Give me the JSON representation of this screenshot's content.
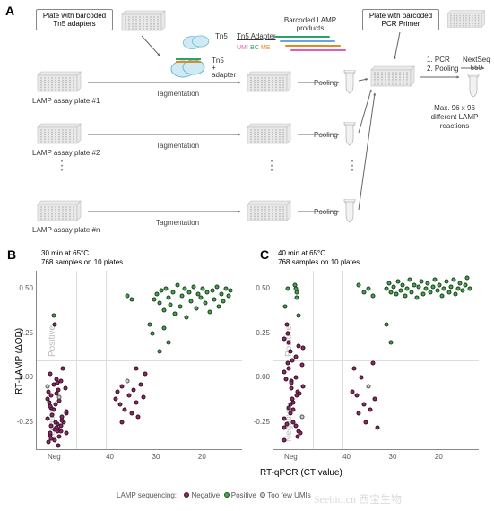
{
  "panelA": {
    "label": "A",
    "boxes": {
      "adapter_plate": "Plate with barcoded\nTn5 adapters",
      "pcr_plate": "Plate with barcoded\nPCR Primer"
    },
    "plate_labels": [
      "LAMP assay plate #1",
      "LAMP assay plate #2",
      "LAMP assay plate #n"
    ],
    "tn5_label": "Tn5",
    "tn5_adapter_label": "Tn5 Adapter",
    "umi_bc_me": [
      {
        "t": "UMI",
        "c": "#e85aad"
      },
      {
        "t": "BC",
        "c": "#2aa36a"
      },
      {
        "t": "ME",
        "c": "#e08a1f"
      }
    ],
    "tn5_plus_adapter": "Tn5\n+\nadapter",
    "barcoded_lamp": "Barcoded LAMP\nproducts",
    "lamp_bar_colors": [
      "#2aa36a",
      "#6aa4e0",
      "#e08a1f",
      "#e85aad"
    ],
    "tagmentation": "Tagmentation",
    "pooling": "Pooling",
    "pcr_steps": "1.  PCR\n2.  Pooling",
    "nextseq": "NextSeq\n550",
    "max_text": "Max. 96 x 96\ndifferent LAMP\nreactions",
    "colors": {
      "plate_body": "#e9e9e9",
      "plate_edge": "#bdbdbd",
      "tn5_body": "#cfeaf5",
      "tn5_edge": "#6ab6d6",
      "arrow": "#666666",
      "tube_body": "#f2f2f2",
      "tube_edge": "#b8b8b8"
    }
  },
  "plots": {
    "ylabel": "RT-LAMP (ΔOD)",
    "xlabel": "RT-qPCR (CT value)",
    "legend_title": "LAMP sequencing:",
    "legend_items": [
      {
        "t": "Negative",
        "c": "#8b2a63"
      },
      {
        "t": "Positive",
        "c": "#47a34e"
      },
      {
        "t": "Too few UMIs",
        "c": "#cfcfcf"
      }
    ],
    "y": {
      "lim": [
        -0.4,
        0.6
      ],
      "ticks": [
        -0.25,
        0.0,
        0.25,
        0.5
      ],
      "thresh": 0.1
    },
    "x": {
      "neg_label": "Neg",
      "neg_x": 45.5,
      "lim": [
        48,
        12
      ],
      "ticks": [
        40,
        30,
        20
      ],
      "thresh": 41.5
    },
    "region_pos": "Positive",
    "region_neg": "Negative",
    "B": {
      "label": "B",
      "title": "30 min at 65°C\n768 samples on 10 plates",
      "points": [
        {
          "x": 46.8,
          "y": -0.3,
          "c": "neg"
        },
        {
          "x": 46.5,
          "y": -0.27,
          "c": "neg"
        },
        {
          "x": 46.2,
          "y": -0.25,
          "c": "neg"
        },
        {
          "x": 45.9,
          "y": -0.23,
          "c": "neg"
        },
        {
          "x": 45.6,
          "y": -0.29,
          "c": "neg"
        },
        {
          "x": 45.3,
          "y": -0.31,
          "c": "neg"
        },
        {
          "x": 45.0,
          "y": -0.26,
          "c": "neg"
        },
        {
          "x": 44.7,
          "y": -0.24,
          "c": "neg"
        },
        {
          "x": 44.4,
          "y": -0.28,
          "c": "neg"
        },
        {
          "x": 47.0,
          "y": -0.22,
          "c": "neg"
        },
        {
          "x": 46.6,
          "y": -0.2,
          "c": "neg"
        },
        {
          "x": 46.3,
          "y": -0.18,
          "c": "neg"
        },
        {
          "x": 46.0,
          "y": -0.33,
          "c": "neg"
        },
        {
          "x": 45.7,
          "y": -0.35,
          "c": "neg"
        },
        {
          "x": 45.4,
          "y": -0.19,
          "c": "neg"
        },
        {
          "x": 45.1,
          "y": -0.21,
          "c": "neg"
        },
        {
          "x": 44.8,
          "y": -0.17,
          "c": "neg"
        },
        {
          "x": 44.5,
          "y": -0.15,
          "c": "neg"
        },
        {
          "x": 46.9,
          "y": -0.13,
          "c": "neg"
        },
        {
          "x": 46.4,
          "y": -0.11,
          "c": "few"
        },
        {
          "x": 46.1,
          "y": -0.09,
          "c": "neg"
        },
        {
          "x": 45.8,
          "y": -0.07,
          "c": "neg"
        },
        {
          "x": 45.5,
          "y": -0.05,
          "c": "few"
        },
        {
          "x": 45.2,
          "y": -0.03,
          "c": "neg"
        },
        {
          "x": 44.9,
          "y": -0.32,
          "c": "neg"
        },
        {
          "x": 44.6,
          "y": -0.34,
          "c": "neg"
        },
        {
          "x": 46.7,
          "y": -0.36,
          "c": "neg"
        },
        {
          "x": 45.0,
          "y": -0.02,
          "c": "neg"
        },
        {
          "x": 45.6,
          "y": 0.02,
          "c": "neg"
        },
        {
          "x": 46.2,
          "y": 0.05,
          "c": "neg"
        },
        {
          "x": 45.3,
          "y": 0.3,
          "c": "neg"
        },
        {
          "x": 46.0,
          "y": 0.35,
          "c": "pos"
        },
        {
          "x": 45.5,
          "y": -0.38,
          "c": "neg"
        },
        {
          "x": 44.3,
          "y": -0.3,
          "c": "neg"
        },
        {
          "x": 44.0,
          "y": -0.27,
          "c": "neg"
        },
        {
          "x": 47.2,
          "y": -0.25,
          "c": "neg"
        },
        {
          "x": 46.8,
          "y": -0.16,
          "c": "neg"
        },
        {
          "x": 46.5,
          "y": -0.14,
          "c": "neg"
        },
        {
          "x": 46.2,
          "y": -0.12,
          "c": "neg"
        },
        {
          "x": 45.9,
          "y": -0.1,
          "c": "neg"
        },
        {
          "x": 45.6,
          "y": -0.08,
          "c": "neg"
        },
        {
          "x": 45.3,
          "y": -0.06,
          "c": "neg"
        },
        {
          "x": 45.0,
          "y": -0.04,
          "c": "neg"
        },
        {
          "x": 44.7,
          "y": -0.01,
          "c": "neg"
        },
        {
          "x": 46.6,
          "y": -0.29,
          "c": "neg"
        },
        {
          "x": 46.3,
          "y": -0.31,
          "c": "neg"
        },
        {
          "x": 39.5,
          "y": -0.12,
          "c": "neg"
        },
        {
          "x": 39.0,
          "y": -0.08,
          "c": "neg"
        },
        {
          "x": 38.5,
          "y": -0.15,
          "c": "neg"
        },
        {
          "x": 38.0,
          "y": -0.05,
          "c": "neg"
        },
        {
          "x": 37.5,
          "y": -0.18,
          "c": "neg"
        },
        {
          "x": 37.0,
          "y": -0.02,
          "c": "few"
        },
        {
          "x": 36.5,
          "y": -0.1,
          "c": "neg"
        },
        {
          "x": 36.0,
          "y": -0.2,
          "c": "neg"
        },
        {
          "x": 35.5,
          "y": -0.07,
          "c": "neg"
        },
        {
          "x": 35.0,
          "y": -0.14,
          "c": "neg"
        },
        {
          "x": 34.5,
          "y": -0.22,
          "c": "neg"
        },
        {
          "x": 34.0,
          "y": -0.04,
          "c": "neg"
        },
        {
          "x": 33.5,
          "y": -0.11,
          "c": "neg"
        },
        {
          "x": 33.0,
          "y": 0.02,
          "c": "neg"
        },
        {
          "x": 37.0,
          "y": 0.46,
          "c": "pos"
        },
        {
          "x": 36.0,
          "y": 0.44,
          "c": "pos"
        },
        {
          "x": 38.0,
          "y": -0.25,
          "c": "neg"
        },
        {
          "x": 35.0,
          "y": 0.05,
          "c": "neg"
        },
        {
          "x": 31.0,
          "y": 0.44,
          "c": "pos"
        },
        {
          "x": 30.5,
          "y": 0.47,
          "c": "pos"
        },
        {
          "x": 30.0,
          "y": 0.42,
          "c": "pos"
        },
        {
          "x": 29.5,
          "y": 0.49,
          "c": "pos"
        },
        {
          "x": 29.0,
          "y": 0.38,
          "c": "pos"
        },
        {
          "x": 28.5,
          "y": 0.5,
          "c": "pos"
        },
        {
          "x": 28.0,
          "y": 0.45,
          "c": "pos"
        },
        {
          "x": 27.5,
          "y": 0.41,
          "c": "pos"
        },
        {
          "x": 27.0,
          "y": 0.48,
          "c": "pos"
        },
        {
          "x": 26.5,
          "y": 0.36,
          "c": "pos"
        },
        {
          "x": 26.0,
          "y": 0.52,
          "c": "pos"
        },
        {
          "x": 25.5,
          "y": 0.4,
          "c": "pos"
        },
        {
          "x": 25.0,
          "y": 0.46,
          "c": "pos"
        },
        {
          "x": 24.5,
          "y": 0.5,
          "c": "pos"
        },
        {
          "x": 24.0,
          "y": 0.34,
          "c": "pos"
        },
        {
          "x": 23.5,
          "y": 0.48,
          "c": "pos"
        },
        {
          "x": 23.0,
          "y": 0.43,
          "c": "pos"
        },
        {
          "x": 22.5,
          "y": 0.51,
          "c": "pos"
        },
        {
          "x": 22.0,
          "y": 0.39,
          "c": "pos"
        },
        {
          "x": 21.5,
          "y": 0.47,
          "c": "pos"
        },
        {
          "x": 21.0,
          "y": 0.45,
          "c": "pos"
        },
        {
          "x": 20.5,
          "y": 0.5,
          "c": "pos"
        },
        {
          "x": 20.0,
          "y": 0.42,
          "c": "pos"
        },
        {
          "x": 19.5,
          "y": 0.48,
          "c": "pos"
        },
        {
          "x": 19.0,
          "y": 0.37,
          "c": "pos"
        },
        {
          "x": 18.5,
          "y": 0.49,
          "c": "pos"
        },
        {
          "x": 18.0,
          "y": 0.44,
          "c": "pos"
        },
        {
          "x": 17.5,
          "y": 0.51,
          "c": "pos"
        },
        {
          "x": 17.0,
          "y": 0.4,
          "c": "pos"
        },
        {
          "x": 16.5,
          "y": 0.47,
          "c": "pos"
        },
        {
          "x": 16.0,
          "y": 0.43,
          "c": "pos"
        },
        {
          "x": 32.0,
          "y": 0.3,
          "c": "pos"
        },
        {
          "x": 31.5,
          "y": 0.25,
          "c": "pos"
        },
        {
          "x": 30.0,
          "y": 0.15,
          "c": "pos"
        },
        {
          "x": 15.5,
          "y": 0.5,
          "c": "pos"
        },
        {
          "x": 15.0,
          "y": 0.46,
          "c": "pos"
        },
        {
          "x": 14.5,
          "y": 0.49,
          "c": "pos"
        },
        {
          "x": 29.0,
          "y": 0.28,
          "c": "pos"
        },
        {
          "x": 28.0,
          "y": 0.2,
          "c": "pos"
        }
      ]
    },
    "C": {
      "label": "C",
      "title": "40 min at 65°C\n768 samples on 10 plates",
      "points": [
        {
          "x": 47.0,
          "y": -0.3,
          "c": "neg"
        },
        {
          "x": 46.8,
          "y": -0.1,
          "c": "neg"
        },
        {
          "x": 46.6,
          "y": 0.05,
          "c": "neg"
        },
        {
          "x": 46.4,
          "y": -0.25,
          "c": "neg"
        },
        {
          "x": 46.2,
          "y": -0.05,
          "c": "neg"
        },
        {
          "x": 46.0,
          "y": 0.15,
          "c": "neg"
        },
        {
          "x": 45.8,
          "y": -0.2,
          "c": "neg"
        },
        {
          "x": 45.6,
          "y": 0.0,
          "c": "neg"
        },
        {
          "x": 45.4,
          "y": -0.15,
          "c": "neg"
        },
        {
          "x": 45.2,
          "y": 0.1,
          "c": "neg"
        },
        {
          "x": 45.0,
          "y": -0.28,
          "c": "neg"
        },
        {
          "x": 44.8,
          "y": -0.08,
          "c": "neg"
        },
        {
          "x": 44.6,
          "y": 0.03,
          "c": "neg"
        },
        {
          "x": 44.4,
          "y": -0.22,
          "c": "few"
        },
        {
          "x": 44.2,
          "y": -0.02,
          "c": "neg"
        },
        {
          "x": 44.0,
          "y": 0.18,
          "c": "neg"
        },
        {
          "x": 47.2,
          "y": -0.18,
          "c": "neg"
        },
        {
          "x": 46.9,
          "y": 0.2,
          "c": "neg"
        },
        {
          "x": 46.7,
          "y": -0.33,
          "c": "neg"
        },
        {
          "x": 46.5,
          "y": 0.25,
          "c": "neg"
        },
        {
          "x": 46.3,
          "y": -0.12,
          "c": "neg"
        },
        {
          "x": 46.1,
          "y": 0.3,
          "c": "neg"
        },
        {
          "x": 45.9,
          "y": -0.35,
          "c": "neg"
        },
        {
          "x": 45.7,
          "y": 0.35,
          "c": "pos"
        },
        {
          "x": 45.5,
          "y": -0.06,
          "c": "neg"
        },
        {
          "x": 45.3,
          "y": 0.4,
          "c": "pos"
        },
        {
          "x": 45.1,
          "y": -0.31,
          "c": "neg"
        },
        {
          "x": 44.9,
          "y": 0.45,
          "c": "pos"
        },
        {
          "x": 44.7,
          "y": -0.17,
          "c": "neg"
        },
        {
          "x": 44.5,
          "y": 0.48,
          "c": "pos"
        },
        {
          "x": 44.3,
          "y": -0.01,
          "c": "neg"
        },
        {
          "x": 44.1,
          "y": 0.12,
          "c": "neg"
        },
        {
          "x": 47.1,
          "y": 0.08,
          "c": "neg"
        },
        {
          "x": 46.9,
          "y": -0.27,
          "c": "neg"
        },
        {
          "x": 45.0,
          "y": 0.5,
          "c": "pos"
        },
        {
          "x": 46.0,
          "y": 0.5,
          "c": "pos"
        },
        {
          "x": 45.5,
          "y": 0.52,
          "c": "pos"
        },
        {
          "x": 46.8,
          "y": -0.23,
          "c": "neg"
        },
        {
          "x": 46.5,
          "y": -0.03,
          "c": "neg"
        },
        {
          "x": 46.2,
          "y": 0.22,
          "c": "neg"
        },
        {
          "x": 45.9,
          "y": -0.14,
          "c": "neg"
        },
        {
          "x": 45.6,
          "y": 0.07,
          "c": "neg"
        },
        {
          "x": 45.3,
          "y": -0.26,
          "c": "neg"
        },
        {
          "x": 45.0,
          "y": 0.17,
          "c": "neg"
        },
        {
          "x": 44.7,
          "y": -0.09,
          "c": "neg"
        },
        {
          "x": 39.0,
          "y": 0.05,
          "c": "neg"
        },
        {
          "x": 38.5,
          "y": -0.1,
          "c": "neg"
        },
        {
          "x": 38.0,
          "y": -0.2,
          "c": "neg"
        },
        {
          "x": 37.5,
          "y": 0.0,
          "c": "neg"
        },
        {
          "x": 37.0,
          "y": -0.15,
          "c": "neg"
        },
        {
          "x": 36.5,
          "y": -0.25,
          "c": "neg"
        },
        {
          "x": 36.0,
          "y": -0.05,
          "c": "few"
        },
        {
          "x": 35.5,
          "y": -0.18,
          "c": "neg"
        },
        {
          "x": 35.0,
          "y": 0.08,
          "c": "neg"
        },
        {
          "x": 34.5,
          "y": -0.12,
          "c": "neg"
        },
        {
          "x": 34.0,
          "y": -0.28,
          "c": "neg"
        },
        {
          "x": 39.5,
          "y": -0.08,
          "c": "neg"
        },
        {
          "x": 37.0,
          "y": 0.48,
          "c": "pos"
        },
        {
          "x": 36.0,
          "y": 0.5,
          "c": "pos"
        },
        {
          "x": 38.0,
          "y": 0.52,
          "c": "pos"
        },
        {
          "x": 35.0,
          "y": 0.46,
          "c": "pos"
        },
        {
          "x": 32.0,
          "y": 0.5,
          "c": "pos"
        },
        {
          "x": 31.5,
          "y": 0.53,
          "c": "pos"
        },
        {
          "x": 31.0,
          "y": 0.48,
          "c": "pos"
        },
        {
          "x": 30.5,
          "y": 0.51,
          "c": "pos"
        },
        {
          "x": 30.0,
          "y": 0.47,
          "c": "pos"
        },
        {
          "x": 29.5,
          "y": 0.54,
          "c": "pos"
        },
        {
          "x": 29.0,
          "y": 0.49,
          "c": "pos"
        },
        {
          "x": 28.5,
          "y": 0.52,
          "c": "pos"
        },
        {
          "x": 28.0,
          "y": 0.46,
          "c": "pos"
        },
        {
          "x": 27.5,
          "y": 0.5,
          "c": "pos"
        },
        {
          "x": 27.0,
          "y": 0.55,
          "c": "pos"
        },
        {
          "x": 26.5,
          "y": 0.48,
          "c": "pos"
        },
        {
          "x": 26.0,
          "y": 0.52,
          "c": "pos"
        },
        {
          "x": 25.5,
          "y": 0.45,
          "c": "pos"
        },
        {
          "x": 25.0,
          "y": 0.51,
          "c": "pos"
        },
        {
          "x": 24.5,
          "y": 0.54,
          "c": "pos"
        },
        {
          "x": 24.0,
          "y": 0.47,
          "c": "pos"
        },
        {
          "x": 23.5,
          "y": 0.5,
          "c": "pos"
        },
        {
          "x": 23.0,
          "y": 0.53,
          "c": "pos"
        },
        {
          "x": 22.5,
          "y": 0.48,
          "c": "pos"
        },
        {
          "x": 22.0,
          "y": 0.51,
          "c": "pos"
        },
        {
          "x": 21.5,
          "y": 0.55,
          "c": "pos"
        },
        {
          "x": 21.0,
          "y": 0.49,
          "c": "pos"
        },
        {
          "x": 20.5,
          "y": 0.52,
          "c": "pos"
        },
        {
          "x": 20.0,
          "y": 0.46,
          "c": "pos"
        },
        {
          "x": 19.5,
          "y": 0.5,
          "c": "pos"
        },
        {
          "x": 19.0,
          "y": 0.54,
          "c": "pos"
        },
        {
          "x": 18.5,
          "y": 0.48,
          "c": "pos"
        },
        {
          "x": 18.0,
          "y": 0.51,
          "c": "pos"
        },
        {
          "x": 17.5,
          "y": 0.55,
          "c": "pos"
        },
        {
          "x": 17.0,
          "y": 0.47,
          "c": "pos"
        },
        {
          "x": 16.5,
          "y": 0.5,
          "c": "pos"
        },
        {
          "x": 16.0,
          "y": 0.53,
          "c": "pos"
        },
        {
          "x": 15.5,
          "y": 0.49,
          "c": "pos"
        },
        {
          "x": 15.0,
          "y": 0.52,
          "c": "pos"
        },
        {
          "x": 14.5,
          "y": 0.56,
          "c": "pos"
        },
        {
          "x": 14.0,
          "y": 0.5,
          "c": "pos"
        },
        {
          "x": 32.0,
          "y": 0.3,
          "c": "pos"
        },
        {
          "x": 31.0,
          "y": 0.2,
          "c": "pos"
        }
      ]
    }
  },
  "watermark": "Seebio.cn 西宝生物"
}
